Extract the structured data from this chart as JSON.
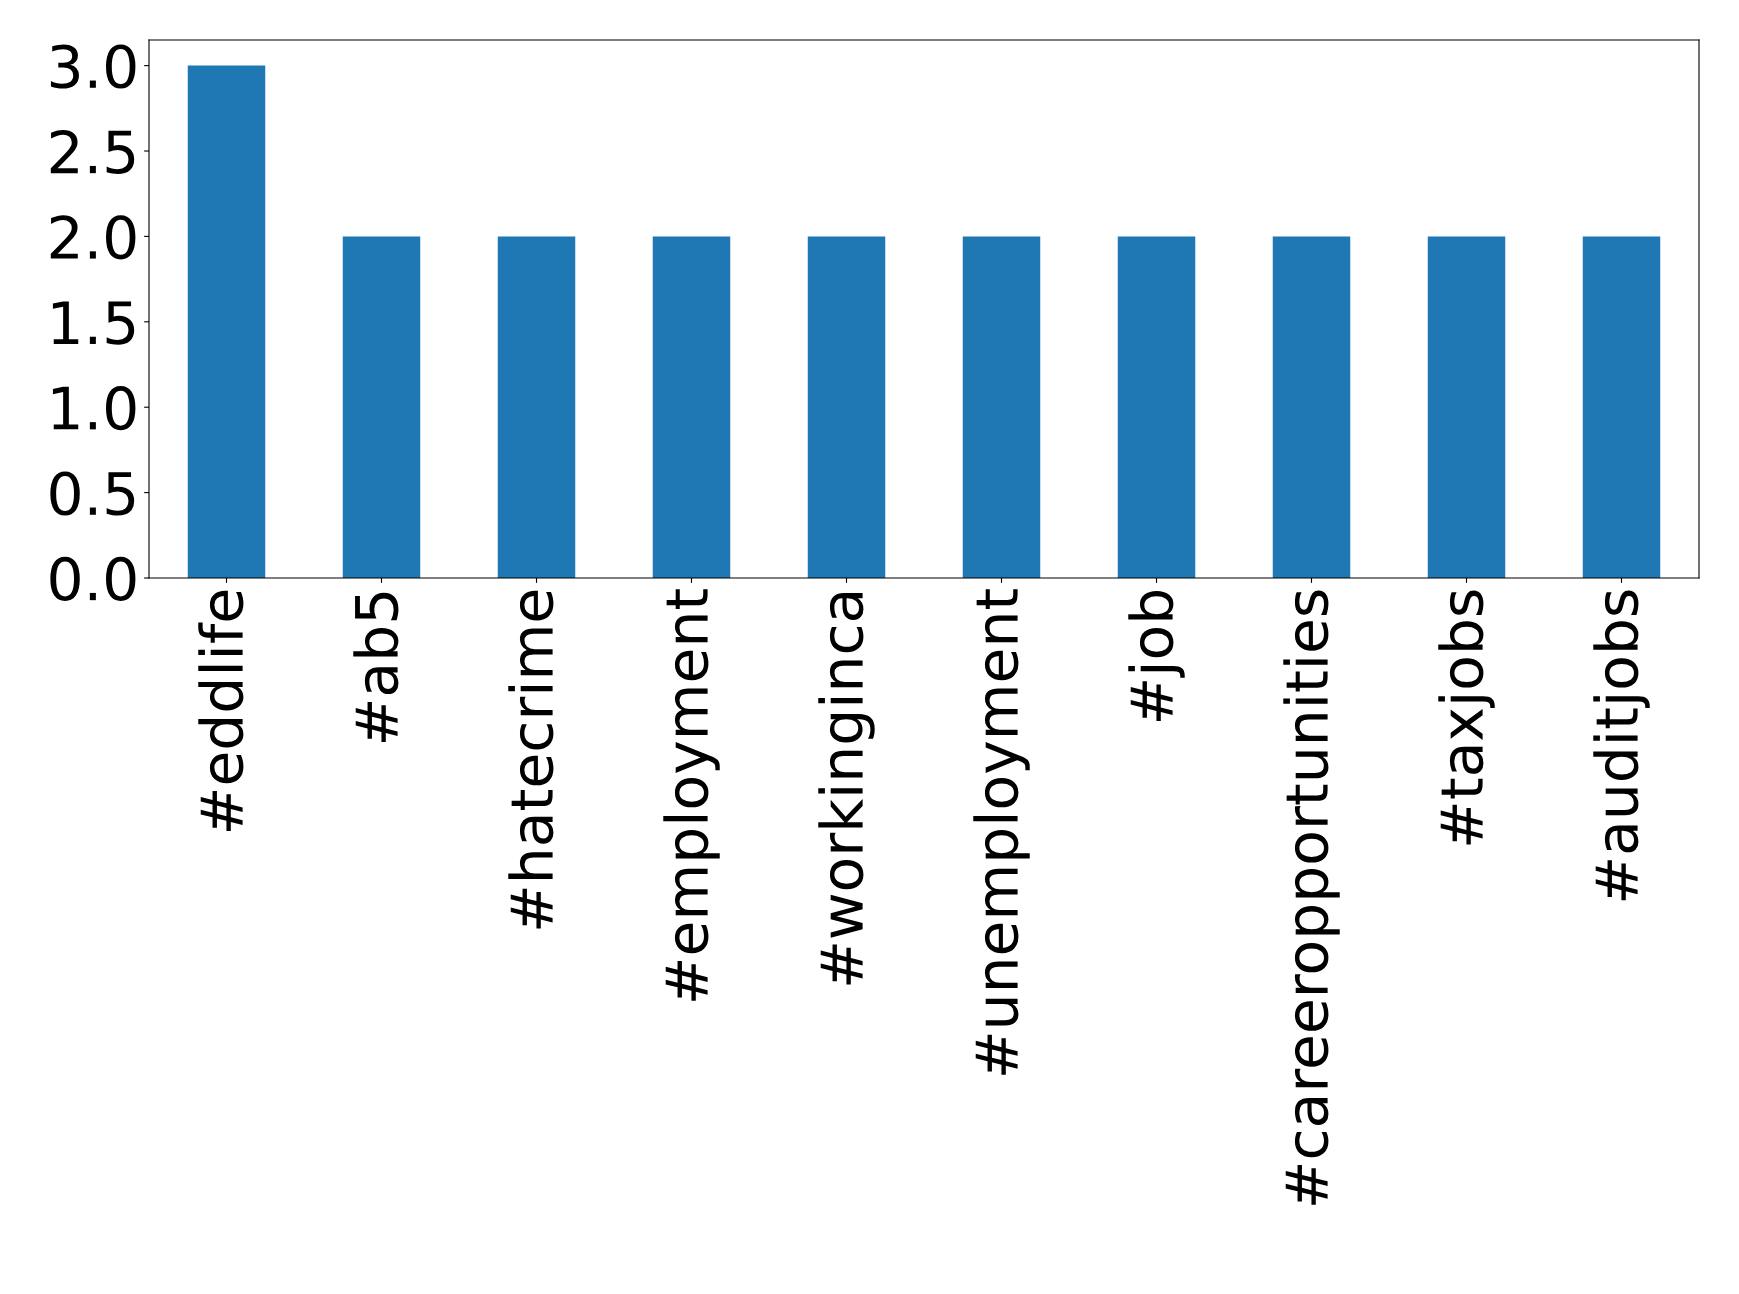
{
  "chart_data": {
    "type": "bar",
    "categories": [
      "#eddlife",
      "#ab5",
      "#hatecrime",
      "#employment",
      "#workinginca",
      "#unemployment",
      "#job",
      "#careeropportunities",
      "#taxjobs",
      "#auditjobs"
    ],
    "values": [
      3,
      2,
      2,
      2,
      2,
      2,
      2,
      2,
      2,
      2
    ],
    "color": "#1f77b4",
    "ylim": [
      0,
      3.15
    ],
    "yticks": [
      {
        "value": 0,
        "label": "0.0"
      },
      {
        "value": 0.5,
        "label": "0.5"
      },
      {
        "value": 1,
        "label": "1.0"
      },
      {
        "value": 1.5,
        "label": "1.5"
      },
      {
        "value": 2,
        "label": "2.0"
      },
      {
        "value": 2.5,
        "label": "2.5"
      },
      {
        "value": 3,
        "label": "3.0"
      }
    ],
    "grid": false
  }
}
